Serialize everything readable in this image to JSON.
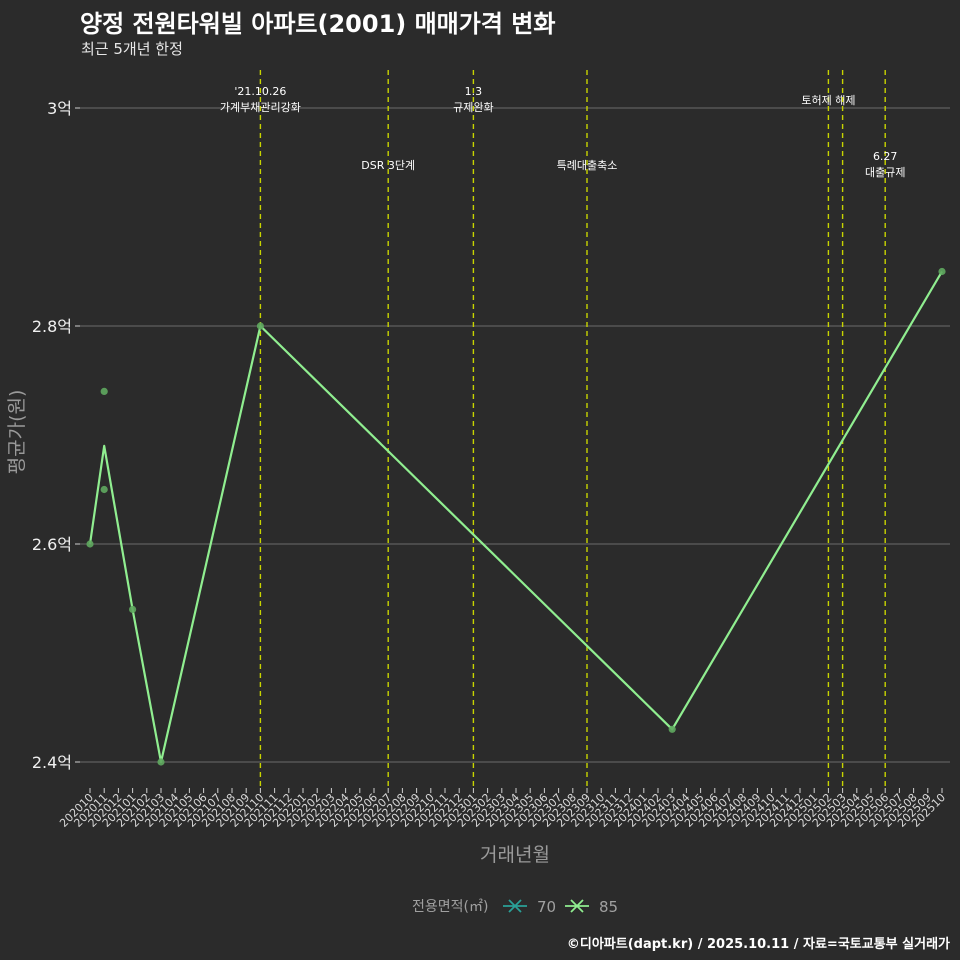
{
  "header": {
    "title": "양정 전원타워빌 아파트(2001) 매매가격 변화",
    "subtitle": "최근 5개년 한정"
  },
  "caption": "©디아파트(dapt.kr) / 2025.10.11 / 자료=국토교통부 실거래가",
  "colors": {
    "background": "#2b2b2b",
    "grid": "#6b6b6b",
    "series_70": "#2aa198",
    "series_85": "#90ee90",
    "points_85": "#5fa85f",
    "event_line": "#c8d400"
  },
  "chart_data": {
    "type": "line",
    "title": "양정 전원타워빌 아파트(2001) 매매가격 변화",
    "subtitle": "최근 5개년 한정",
    "xlabel": "거래년월",
    "ylabel": "평균가(원)",
    "ylim": [
      2.35,
      3.03
    ],
    "yticks": [
      {
        "value": 2.4,
        "label": "2.4억"
      },
      {
        "value": 2.6,
        "label": "2.6억"
      },
      {
        "value": 2.8,
        "label": "2.8억"
      },
      {
        "value": 3.0,
        "label": "3억"
      }
    ],
    "categories": [
      "202010",
      "202011",
      "202012",
      "202101",
      "202102",
      "202103",
      "202104",
      "202105",
      "202106",
      "202107",
      "202108",
      "202109",
      "202110",
      "202111",
      "202112",
      "202201",
      "202202",
      "202203",
      "202204",
      "202205",
      "202206",
      "202207",
      "202208",
      "202209",
      "202210",
      "202211",
      "202212",
      "202301",
      "202302",
      "202303",
      "202304",
      "202305",
      "202306",
      "202307",
      "202308",
      "202309",
      "202310",
      "202311",
      "202312",
      "202401",
      "202402",
      "202403",
      "202404",
      "202405",
      "202406",
      "202407",
      "202408",
      "202409",
      "202410",
      "202411",
      "202412",
      "202501",
      "202502",
      "202503",
      "202504",
      "202505",
      "202506",
      "202507",
      "202508",
      "202509",
      "202510"
    ],
    "legend": {
      "title": "전용면적(㎡)",
      "position": "bottom",
      "entries": [
        "70",
        "85"
      ]
    },
    "series": [
      {
        "name": "85",
        "line": [
          {
            "x": "202010",
            "y": 2.6
          },
          {
            "x": "202011",
            "y": 2.69
          },
          {
            "x": "202101",
            "y": 2.54
          },
          {
            "x": "202103",
            "y": 2.4
          },
          {
            "x": "202110",
            "y": 2.8
          },
          {
            "x": "202403",
            "y": 2.43
          },
          {
            "x": "202510",
            "y": 2.85
          }
        ],
        "points": [
          {
            "x": "202010",
            "y": 2.6
          },
          {
            "x": "202011",
            "y": 2.74
          },
          {
            "x": "202011",
            "y": 2.65
          },
          {
            "x": "202101",
            "y": 2.54
          },
          {
            "x": "202103",
            "y": 2.4
          },
          {
            "x": "202110",
            "y": 2.8
          },
          {
            "x": "202403",
            "y": 2.43
          },
          {
            "x": "202510",
            "y": 2.85
          }
        ]
      }
    ],
    "events": [
      {
        "x": "202110",
        "lines": [
          "'21.10.26",
          "가계부채관리강화"
        ],
        "row": "top"
      },
      {
        "x": "202207",
        "lines": [
          "DSR 3단계"
        ],
        "row": "lower"
      },
      {
        "x": "202301",
        "lines": [
          "1.3",
          "규제완화"
        ],
        "row": "top"
      },
      {
        "x": "202309",
        "lines": [
          "특례대출축소"
        ],
        "row": "lower"
      },
      {
        "x": "202502",
        "lines": [
          "토허제 해제"
        ],
        "row": "top"
      },
      {
        "x": "202503",
        "lines": [],
        "row": "top"
      },
      {
        "x": "202506",
        "lines": [
          "6.27",
          "대출규제"
        ],
        "row": "lower"
      }
    ]
  }
}
